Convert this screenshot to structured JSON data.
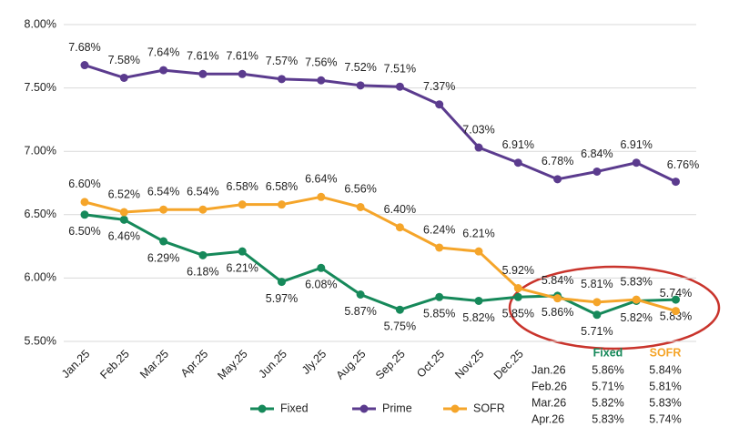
{
  "chart_data": {
    "type": "line",
    "categories": [
      "Jan.25",
      "Feb.25",
      "Mar.25",
      "Apr.25",
      "May.25",
      "Jun.25",
      "Jly.25",
      "Aug.25",
      "Sep.25",
      "Oct.25",
      "Nov.25",
      "Dec.25",
      null,
      null,
      null,
      null
    ],
    "series": [
      {
        "name": "Fixed",
        "color": "#16895a",
        "values": [
          6.5,
          6.46,
          6.29,
          6.18,
          6.21,
          5.97,
          6.08,
          5.87,
          5.75,
          5.85,
          5.82,
          5.85,
          5.86,
          5.71,
          5.82,
          5.83
        ],
        "value_labels": [
          "6.50%",
          "6.46%",
          "6.29%",
          "6.18%",
          "6.21%",
          "5.97%",
          "6.08%",
          "5.87%",
          "5.75%",
          "5.85%",
          "5.82%",
          "5.85%",
          "5.86%",
          "5.71%",
          "5.82%",
          "5.83%"
        ]
      },
      {
        "name": "Prime",
        "color": "#5b3b8e",
        "values": [
          7.68,
          7.58,
          7.64,
          7.61,
          7.61,
          7.57,
          7.56,
          7.52,
          7.51,
          7.37,
          7.03,
          6.91,
          6.78,
          6.84,
          6.91,
          6.76
        ],
        "value_labels": [
          "7.68%",
          "7.58%",
          "7.64%",
          "7.61%",
          "7.61%",
          "7.57%",
          "7.56%",
          "7.52%",
          "7.51%",
          "7.37%",
          "7.03%",
          "6.91%",
          "6.78%",
          "6.84%",
          "6.91%",
          "6.76%"
        ]
      },
      {
        "name": "SOFR",
        "color": "#f5a52a",
        "values": [
          6.6,
          6.52,
          6.54,
          6.54,
          6.58,
          6.58,
          6.64,
          6.56,
          6.4,
          6.24,
          6.21,
          5.92,
          5.84,
          5.81,
          5.83,
          5.74
        ],
        "value_labels": [
          "6.60%",
          "6.52%",
          "6.54%",
          "6.54%",
          "6.58%",
          "6.58%",
          "6.64%",
          "6.56%",
          "6.40%",
          "6.24%",
          "6.21%",
          "5.92%",
          "5.84%",
          "5.81%",
          "5.83%",
          "5.74%"
        ]
      }
    ],
    "ylim": [
      5.5,
      8.0
    ],
    "yticks": [
      {
        "value": 5.5,
        "label": "5.50%"
      },
      {
        "value": 6.0,
        "label": "6.00%"
      },
      {
        "value": 6.5,
        "label": "6.50%"
      },
      {
        "value": 7.0,
        "label": "7.00%"
      },
      {
        "value": 7.5,
        "label": "7.50%"
      },
      {
        "value": 8.0,
        "label": "8.00%"
      }
    ],
    "grid": true,
    "legend": "bottom",
    "table": {
      "columns": [
        "Fixed",
        "SOFR"
      ],
      "rows": [
        [
          "Jan.26",
          "5.86%",
          "5.84%"
        ],
        [
          "Feb.26",
          "5.71%",
          "5.81%"
        ],
        [
          "Mar.26",
          "5.82%",
          "5.83%"
        ],
        [
          "Apr.26",
          "5.83%",
          "5.74%"
        ]
      ]
    }
  }
}
